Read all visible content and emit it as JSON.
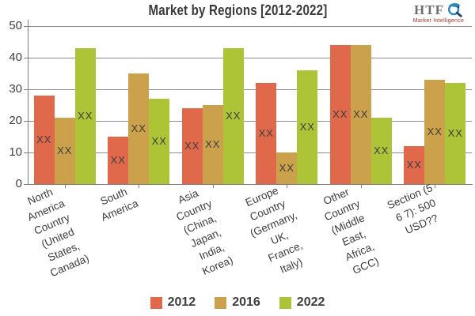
{
  "title": "Market by Regions [2012-2022]",
  "logo": {
    "text": "HTF",
    "tagline": "Market Intelligence",
    "icon": "magnifier-swirl-icon",
    "icon_color": "#2e86c1",
    "icon_dark_color": "#1a3c6e",
    "text_color": "#6d6e70",
    "tagline_color": "#a93226"
  },
  "colors": {
    "grid": "#8e8e8e",
    "axis": "#7f7f7f",
    "tick_text": "#404040",
    "label_text": "#3d3d3d",
    "title_text": "#3a3a3a",
    "background": "#ffffff"
  },
  "chart_data": {
    "type": "bar",
    "title": "Market by Regions [2012-2022]",
    "xlabel": "",
    "ylabel": "",
    "ylim": [
      0,
      50
    ],
    "yticks": [
      0,
      10,
      20,
      30,
      40,
      50
    ],
    "grid": true,
    "legend_position": "bottom",
    "bar_value_label": "XX",
    "categories": [
      "North America Country (United States, Canada)",
      "South America",
      "Asia Country (China, Japan, India, Korea)",
      "Europe Country (Germany, UK, France, Italy)",
      "Other Country (Middle East, Africa, GCC)",
      "Section (5 6 7): 500 USD??"
    ],
    "category_lines": [
      [
        "North",
        "America",
        "Country",
        "(United",
        "States,",
        "Canada)"
      ],
      [
        "South",
        "America"
      ],
      [
        "Asia",
        "Country",
        "(China,",
        "Japan,",
        "India,",
        "Korea)"
      ],
      [
        "Europe",
        "Country",
        "(Germany,",
        "UK,",
        "France,",
        "Italy)"
      ],
      [
        "Other",
        "Country",
        "(Middle",
        "East,",
        "Africa,",
        "GCC)"
      ],
      [
        "Section (5",
        "6 7): 500",
        "USD??"
      ]
    ],
    "series": [
      {
        "name": "2012",
        "color": "#E0694C",
        "values": [
          28,
          15,
          24,
          32,
          44,
          12
        ]
      },
      {
        "name": "2016",
        "color": "#CBA14C",
        "values": [
          21,
          35,
          25,
          10,
          44,
          33
        ]
      },
      {
        "name": "2022",
        "color": "#ADC436",
        "values": [
          43,
          27,
          43,
          36,
          21,
          32
        ]
      }
    ]
  }
}
